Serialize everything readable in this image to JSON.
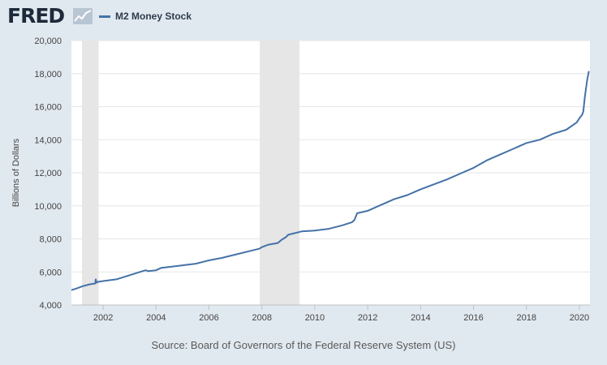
{
  "header": {
    "logo_text": "FRED",
    "logo_icon": "sparkline-icon",
    "legend_label": "M2 Money Stock",
    "legend_color": "#4572a7"
  },
  "source_text": "Source: Board of Governors of the Federal Reserve System (US)",
  "colors": {
    "background": "#e1e9f0",
    "plot_background": "#ffffff",
    "recession_band": "#e6e6e6",
    "line": "#4572a7",
    "grid": "#e6e6e6"
  },
  "chart_data": {
    "type": "line",
    "title": "",
    "xlabel": "",
    "ylabel": "Billions of Dollars",
    "xlim": [
      2000.8,
      2020.4
    ],
    "ylim": [
      4000,
      20000
    ],
    "yticks": [
      4000,
      6000,
      8000,
      10000,
      12000,
      14000,
      16000,
      18000,
      20000
    ],
    "ytick_labels": [
      "4,000",
      "6,000",
      "8,000",
      "10,000",
      "12,000",
      "14,000",
      "16,000",
      "18,000",
      "20,000"
    ],
    "xticks": [
      2002,
      2004,
      2006,
      2008,
      2010,
      2012,
      2014,
      2016,
      2018,
      2020
    ],
    "xtick_labels": [
      "2002",
      "2004",
      "2006",
      "2008",
      "2010",
      "2012",
      "2014",
      "2016",
      "2018",
      "2020"
    ],
    "grid": true,
    "legend_placement": "top-left",
    "recessions": [
      [
        2001.2,
        2001.83
      ],
      [
        2007.92,
        2009.42
      ]
    ],
    "series": [
      {
        "name": "M2 Money Stock",
        "x": [
          2000.8,
          2001.0,
          2001.25,
          2001.5,
          2001.7,
          2001.72,
          2001.75,
          2001.8,
          2002.0,
          2002.5,
          2003.0,
          2003.5,
          2003.6,
          2003.7,
          2004.0,
          2004.2,
          2004.5,
          2005.0,
          2005.5,
          2006.0,
          2006.5,
          2007.0,
          2007.5,
          2007.9,
          2008.0,
          2008.25,
          2008.6,
          2008.75,
          2008.9,
          2009.0,
          2009.25,
          2009.5,
          2010.0,
          2010.5,
          2011.0,
          2011.4,
          2011.5,
          2011.6,
          2012.0,
          2012.5,
          2013.0,
          2013.5,
          2014.0,
          2014.5,
          2015.0,
          2015.5,
          2016.0,
          2016.5,
          2017.0,
          2017.5,
          2018.0,
          2018.5,
          2019.0,
          2019.5,
          2019.9,
          2020.0,
          2020.1,
          2020.15,
          2020.2,
          2020.25,
          2020.3,
          2020.36
        ],
        "values": [
          4900,
          5000,
          5150,
          5250,
          5300,
          5550,
          5350,
          5400,
          5450,
          5550,
          5800,
          6050,
          6100,
          6050,
          6100,
          6250,
          6300,
          6400,
          6500,
          6700,
          6850,
          7050,
          7250,
          7400,
          7500,
          7650,
          7750,
          7950,
          8100,
          8250,
          8350,
          8450,
          8500,
          8600,
          8800,
          9000,
          9150,
          9550,
          9700,
          10050,
          10400,
          10650,
          11000,
          11300,
          11600,
          11950,
          12300,
          12750,
          13100,
          13450,
          13800,
          14000,
          14350,
          14600,
          15050,
          15300,
          15500,
          15700,
          16500,
          17100,
          17650,
          18150
        ]
      }
    ]
  }
}
